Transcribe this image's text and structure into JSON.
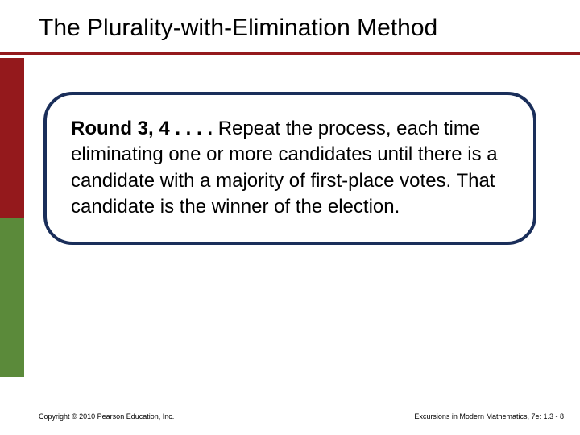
{
  "title": "The Plurality-with-Elimination Method",
  "content": {
    "lead": "Round 3, 4 . . . . ",
    "body": "Repeat the process, each time eliminating one or more candidates until there is a candidate with a majority of first-place votes. That candidate is the winner of the election."
  },
  "footer": {
    "left": "Copyright © 2010 Pearson Education, Inc.",
    "right": "Excursions in Modern Mathematics, 7e: 1.3 - 8"
  },
  "colors": {
    "accent_red": "#94191c",
    "accent_green": "#5b8a3a",
    "box_border": "#1a2e5a",
    "text": "#000000",
    "background": "#ffffff"
  }
}
